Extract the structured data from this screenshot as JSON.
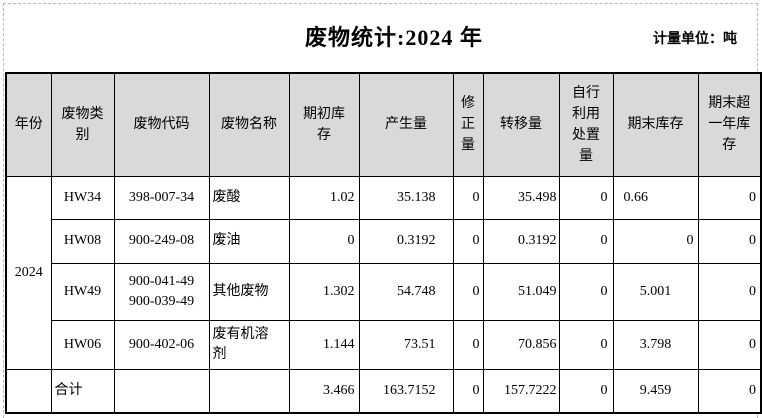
{
  "page": {
    "title": "废物统计:2024 年",
    "unit_label": "计量单位：吨"
  },
  "table": {
    "columns": [
      "年份",
      "废物类\n别",
      "废物代码",
      "废物名称",
      "期初库\n存",
      "产生量",
      "修\n正\n量",
      "转移量",
      "自行\n利用\n处置\n量",
      "期末库存",
      "期末超\n一年库\n存"
    ],
    "year": "2024",
    "rows": [
      {
        "category": "HW34",
        "code": "398-007-34",
        "name": "废酸",
        "values": [
          "1.02",
          "35.138",
          "0",
          "35.498",
          "0",
          "0.66",
          "0"
        ]
      },
      {
        "category": "HW08",
        "code": "900-249-08",
        "name": "废油",
        "values": [
          "0",
          "0.3192",
          "0",
          "0.3192",
          "0",
          "0",
          "0"
        ]
      },
      {
        "category": "HW49",
        "code": "900-041-49\n900-039-49",
        "name": "其他废物",
        "values": [
          "1.302",
          "54.748",
          "0",
          "51.049",
          "0",
          "5.001",
          "0"
        ]
      },
      {
        "category": "HW06",
        "code": "900-402-06",
        "name": "废有机溶\n剂",
        "values": [
          "1.144",
          "73.51",
          "0",
          "70.856",
          "0",
          "3.798",
          "0"
        ]
      }
    ],
    "total_row": {
      "label": "合计",
      "values": [
        "3.466",
        "163.7152",
        "0",
        "157.7222",
        "0",
        "9.459",
        "0"
      ]
    }
  },
  "colors": {
    "header_bg": "#d9d9d9",
    "grid_border": "#000000",
    "page_break_dash": "#b7b7b7",
    "text": "#000000"
  }
}
